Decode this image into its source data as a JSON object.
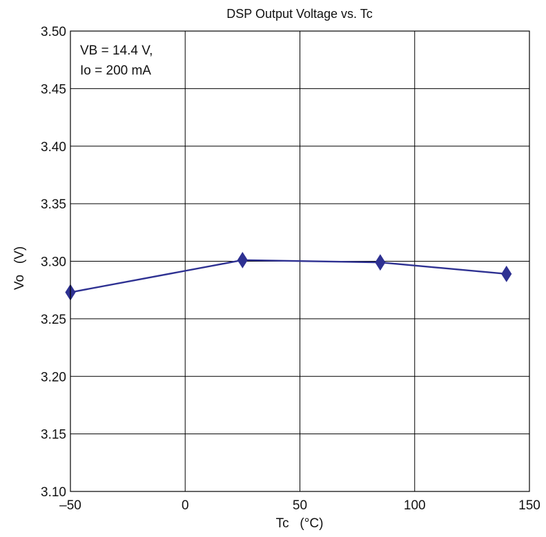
{
  "chart_data": {
    "type": "line",
    "title": "DSP Output Voltage vs. Tc",
    "xlabel": "Tc   (°C)",
    "ylabel": "Vo   (V)",
    "xlim": [
      -50,
      150
    ],
    "ylim": [
      3.1,
      3.5
    ],
    "x_ticks": [
      -50,
      0,
      50,
      100,
      150
    ],
    "x_tick_labels": [
      "–50",
      "0",
      "50",
      "100",
      "150"
    ],
    "y_ticks": [
      3.1,
      3.15,
      3.2,
      3.25,
      3.3,
      3.35,
      3.4,
      3.45,
      3.5
    ],
    "y_tick_labels": [
      "3.10",
      "3.15",
      "3.20",
      "3.25",
      "3.30",
      "3.35",
      "3.40",
      "3.45",
      "3.50"
    ],
    "grid": true,
    "annotation_lines": [
      "VB = 14.4 V,",
      "Io = 200 mA"
    ],
    "series": [
      {
        "x": [
          -50,
          25,
          85,
          140
        ],
        "y": [
          3.273,
          3.301,
          3.299,
          3.289
        ],
        "color": "#2e3192",
        "marker": "diamond"
      }
    ]
  }
}
